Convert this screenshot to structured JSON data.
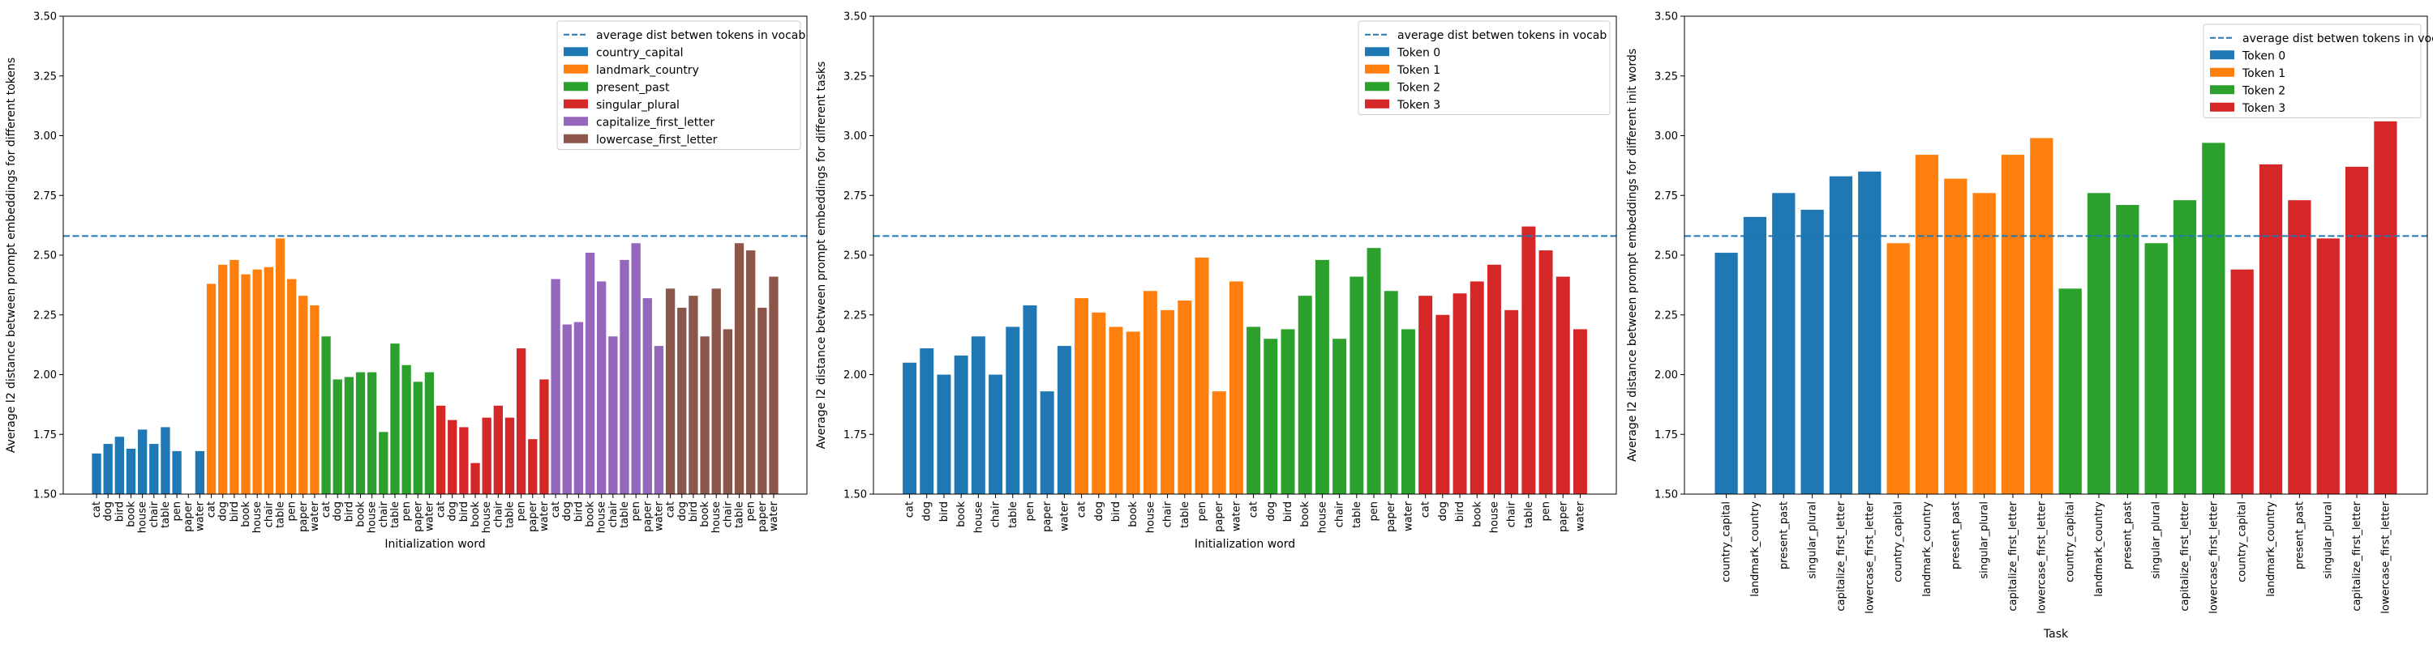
{
  "colors": {
    "blue": "#1f77b4",
    "orange": "#ff7f0e",
    "green": "#2ca02c",
    "red": "#d62728",
    "purple": "#9467bd",
    "brown": "#8c564b"
  },
  "chart_data": [
    {
      "type": "bar",
      "xlabel": "Initialization word",
      "ylabel": "Average l2 distance between prompt embeddings for different tokens",
      "ylim": [
        1.5,
        3.5
      ],
      "yticks": [
        "1.50",
        "1.75",
        "2.00",
        "2.25",
        "2.50",
        "2.75",
        "3.00",
        "3.25",
        "3.50"
      ],
      "hline": {
        "label": "average dist betwen tokens in vocab",
        "value": 2.58,
        "style": "dashed"
      },
      "legend_position": "top-right",
      "categories": [
        "cat",
        "dog",
        "bird",
        "book",
        "house",
        "chair",
        "table",
        "pen",
        "paper",
        "water"
      ],
      "series": [
        {
          "name": "country_capital",
          "color": "blue",
          "values": [
            1.67,
            1.71,
            1.74,
            1.69,
            1.77,
            1.71,
            1.78,
            1.68,
            1.5,
            1.68
          ]
        },
        {
          "name": "landmark_country",
          "color": "orange",
          "values": [
            2.38,
            2.46,
            2.48,
            2.42,
            2.44,
            2.45,
            2.57,
            2.4,
            2.33,
            2.29
          ]
        },
        {
          "name": "present_past",
          "color": "green",
          "values": [
            2.16,
            1.98,
            1.99,
            2.01,
            2.01,
            1.76,
            2.13,
            2.04,
            1.97,
            2.01
          ]
        },
        {
          "name": "singular_plural",
          "color": "red",
          "values": [
            1.87,
            1.81,
            1.78,
            1.63,
            1.82,
            1.87,
            1.82,
            2.11,
            1.73,
            1.98
          ]
        },
        {
          "name": "capitalize_first_letter",
          "color": "purple",
          "values": [
            2.4,
            2.21,
            2.22,
            2.51,
            2.39,
            2.16,
            2.48,
            2.55,
            2.32,
            2.12
          ]
        },
        {
          "name": "lowercase_first_letter",
          "color": "brown",
          "values": [
            2.36,
            2.28,
            2.33,
            2.16,
            2.36,
            2.19,
            2.55,
            2.52,
            2.28,
            2.41
          ]
        }
      ]
    },
    {
      "type": "bar",
      "xlabel": "Initialization word",
      "ylabel": "Average l2 distance between prompt embeddings for different tasks",
      "ylim": [
        1.5,
        3.5
      ],
      "yticks": [
        "1.50",
        "1.75",
        "2.00",
        "2.25",
        "2.50",
        "2.75",
        "3.00",
        "3.25",
        "3.50"
      ],
      "hline": {
        "label": "average dist betwen tokens in vocab",
        "value": 2.58,
        "style": "dashed"
      },
      "legend_position": "top-right",
      "categories": [
        "cat",
        "dog",
        "bird",
        "book",
        "house",
        "chair",
        "table",
        "pen",
        "paper",
        "water"
      ],
      "series": [
        {
          "name": "Token 0",
          "color": "blue",
          "values": [
            2.05,
            2.11,
            2.0,
            2.08,
            2.16,
            2.0,
            2.2,
            2.29,
            1.93,
            2.12
          ]
        },
        {
          "name": "Token 1",
          "color": "orange",
          "values": [
            2.32,
            2.26,
            2.2,
            2.18,
            2.35,
            2.27,
            2.31,
            2.49,
            1.93,
            2.39
          ]
        },
        {
          "name": "Token 2",
          "color": "green",
          "values": [
            2.2,
            2.15,
            2.19,
            2.33,
            2.48,
            2.15,
            2.41,
            2.53,
            2.35,
            2.19
          ]
        },
        {
          "name": "Token 3",
          "color": "red",
          "values": [
            2.33,
            2.25,
            2.34,
            2.39,
            2.46,
            2.27,
            2.62,
            2.52,
            2.41,
            2.19
          ]
        }
      ]
    },
    {
      "type": "bar",
      "xlabel": "Task",
      "ylabel": "Average l2 distance between prompt embeddings for different init words",
      "ylim": [
        1.5,
        3.5
      ],
      "yticks": [
        "1.50",
        "1.75",
        "2.00",
        "2.25",
        "2.50",
        "2.75",
        "3.00",
        "3.25",
        "3.50"
      ],
      "hline": {
        "label": "average dist betwen tokens in vocab",
        "value": 2.58,
        "style": "dashed"
      },
      "legend_position": "top-right",
      "categories": [
        "country_capital",
        "landmark_country",
        "present_past",
        "singular_plural",
        "capitalize_first_letter",
        "lowercase_first_letter"
      ],
      "series": [
        {
          "name": "Token 0",
          "color": "blue",
          "values": [
            2.51,
            2.66,
            2.76,
            2.69,
            2.83,
            2.85
          ]
        },
        {
          "name": "Token 1",
          "color": "orange",
          "values": [
            2.55,
            2.92,
            2.82,
            2.76,
            2.92,
            2.99
          ]
        },
        {
          "name": "Token 2",
          "color": "green",
          "values": [
            2.36,
            2.76,
            2.71,
            2.55,
            2.73,
            2.97
          ]
        },
        {
          "name": "Token 3",
          "color": "red",
          "values": [
            2.44,
            2.88,
            2.73,
            2.57,
            2.87,
            3.06
          ]
        }
      ]
    }
  ]
}
